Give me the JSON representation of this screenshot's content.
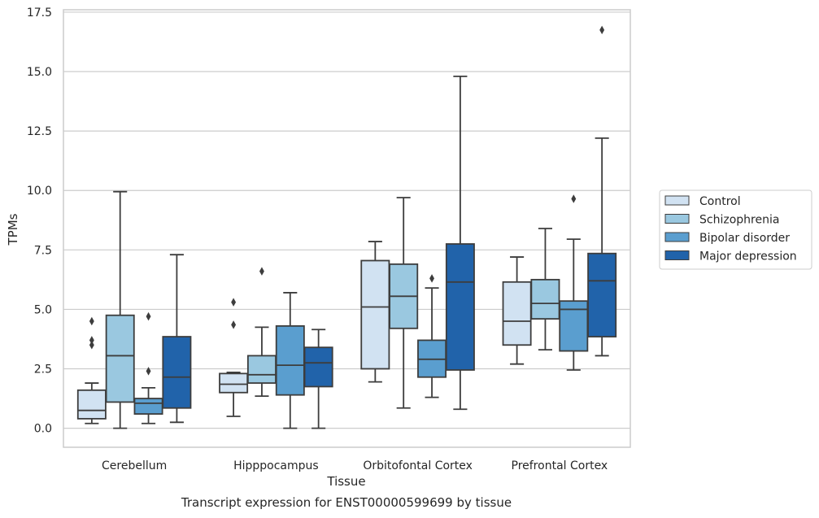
{
  "chart_data": {
    "type": "box",
    "title": "",
    "caption": "Transcript expression for ENST00000599699 by tissue",
    "xlabel": "Tissue",
    "ylabel": "TPMs",
    "ylim": [
      -0.8,
      17.6
    ],
    "yticks": [
      "0.0",
      "2.5",
      "5.0",
      "7.5",
      "10.0",
      "12.5",
      "15.0",
      "17.5"
    ],
    "grid": "horizontal",
    "legend_position": "right",
    "categories": [
      "Cerebellum",
      "Hipppocampus",
      "Orbitofontal Cortex",
      "Prefrontal Cortex"
    ],
    "series": [
      {
        "name": "Control",
        "color": "#d1e2f2",
        "boxes": [
          {
            "whisker_low": 0.2,
            "q1": 0.4,
            "median": 0.75,
            "q3": 1.6,
            "whisker_high": 1.9,
            "outliers": [
              3.5,
              3.7,
              4.5
            ]
          },
          {
            "whisker_low": 0.5,
            "q1": 1.5,
            "median": 1.85,
            "q3": 2.3,
            "whisker_high": 2.35,
            "outliers": [
              4.35,
              5.3
            ]
          },
          {
            "whisker_low": 1.95,
            "q1": 2.5,
            "median": 5.1,
            "q3": 7.05,
            "whisker_high": 7.85,
            "outliers": []
          },
          {
            "whisker_low": 2.7,
            "q1": 3.5,
            "median": 4.5,
            "q3": 6.15,
            "whisker_high": 7.2,
            "outliers": []
          }
        ]
      },
      {
        "name": "Schizophrenia",
        "color": "#9ac8e0",
        "boxes": [
          {
            "whisker_low": 0.0,
            "q1": 1.1,
            "median": 3.05,
            "q3": 4.75,
            "whisker_high": 9.95,
            "outliers": []
          },
          {
            "whisker_low": 1.35,
            "q1": 1.9,
            "median": 2.25,
            "q3": 3.05,
            "whisker_high": 4.25,
            "outliers": [
              6.6
            ]
          },
          {
            "whisker_low": 0.85,
            "q1": 4.2,
            "median": 5.55,
            "q3": 6.9,
            "whisker_high": 9.7,
            "outliers": []
          },
          {
            "whisker_low": 3.3,
            "q1": 4.6,
            "median": 5.25,
            "q3": 6.25,
            "whisker_high": 8.4,
            "outliers": []
          }
        ]
      },
      {
        "name": "Bipolar disorder",
        "color": "#5a9ecf",
        "boxes": [
          {
            "whisker_low": 0.2,
            "q1": 0.6,
            "median": 1.05,
            "q3": 1.25,
            "whisker_high": 1.7,
            "outliers": [
              2.4,
              4.7
            ]
          },
          {
            "whisker_low": 0.0,
            "q1": 1.4,
            "median": 2.65,
            "q3": 4.3,
            "whisker_high": 5.7,
            "outliers": []
          },
          {
            "whisker_low": 1.3,
            "q1": 2.15,
            "median": 2.9,
            "q3": 3.7,
            "whisker_high": 5.9,
            "outliers": [
              6.3
            ]
          },
          {
            "whisker_low": 2.45,
            "q1": 3.25,
            "median": 5.0,
            "q3": 5.35,
            "whisker_high": 7.95,
            "outliers": [
              9.65
            ]
          }
        ]
      },
      {
        "name": "Major depression",
        "color": "#2163aa",
        "boxes": [
          {
            "whisker_low": 0.25,
            "q1": 0.85,
            "median": 2.15,
            "q3": 3.85,
            "whisker_high": 7.3,
            "outliers": []
          },
          {
            "whisker_low": 0.0,
            "q1": 1.75,
            "median": 2.75,
            "q3": 3.4,
            "whisker_high": 4.15,
            "outliers": []
          },
          {
            "whisker_low": 0.8,
            "q1": 2.45,
            "median": 6.15,
            "q3": 7.75,
            "whisker_high": 14.8,
            "outliers": []
          },
          {
            "whisker_low": 3.05,
            "q1": 3.85,
            "median": 6.2,
            "q3": 7.35,
            "whisker_high": 12.2,
            "outliers": [
              16.75
            ]
          }
        ]
      }
    ]
  }
}
